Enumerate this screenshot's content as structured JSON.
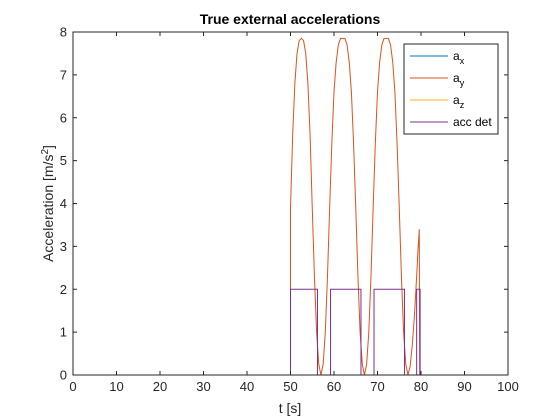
{
  "chart_data": {
    "type": "line",
    "title": "True external accelerations",
    "xlabel": "t [s]",
    "ylabel": "Acceleration [m/s²]",
    "ylabel_base": "Acceleration [m/s",
    "ylabel_sup": "2",
    "ylabel_end": "]",
    "xlim": [
      0,
      100
    ],
    "ylim": [
      0,
      8
    ],
    "xticks": [
      0,
      10,
      20,
      30,
      40,
      50,
      60,
      70,
      80,
      90,
      100
    ],
    "yticks": [
      0,
      1,
      2,
      3,
      4,
      5,
      6,
      7,
      8
    ],
    "grid": false,
    "legend_position": "top-right",
    "series": [
      {
        "name": "a_x",
        "legend_base": "a",
        "legend_sub": "x",
        "color": "#0072BD",
        "points": [
          [
            0,
            0
          ],
          [
            100,
            0
          ]
        ]
      },
      {
        "name": "a_y",
        "legend_base": "a",
        "legend_sub": "y",
        "color": "#D95319",
        "points": [
          [
            0,
            0
          ],
          [
            50,
            0
          ],
          [
            50,
            3.9
          ],
          [
            50.5,
            5.6
          ],
          [
            51,
            6.8
          ],
          [
            51.5,
            7.5
          ],
          [
            52,
            7.8
          ],
          [
            52.5,
            7.85
          ],
          [
            53,
            7.8
          ],
          [
            53.5,
            7.5
          ],
          [
            54,
            6.8
          ],
          [
            54.5,
            5.6
          ],
          [
            55,
            3.9
          ],
          [
            55.5,
            2.3
          ],
          [
            56,
            1.0
          ],
          [
            56.5,
            0.25
          ],
          [
            57,
            0
          ],
          [
            57.5,
            0.25
          ],
          [
            58,
            1.0
          ],
          [
            58.5,
            2.3
          ],
          [
            59,
            3.9
          ],
          [
            59.5,
            5.4
          ],
          [
            60,
            6.6
          ],
          [
            60.5,
            7.3
          ],
          [
            61,
            7.7
          ],
          [
            61.5,
            7.85
          ],
          [
            62.5,
            7.85
          ],
          [
            63,
            7.7
          ],
          [
            63.5,
            7.3
          ],
          [
            64,
            6.6
          ],
          [
            64.5,
            5.4
          ],
          [
            65,
            3.9
          ],
          [
            65.5,
            2.3
          ],
          [
            66,
            1.0
          ],
          [
            66.5,
            0.25
          ],
          [
            67,
            0
          ],
          [
            67.5,
            0.25
          ],
          [
            68,
            1.0
          ],
          [
            68.5,
            2.3
          ],
          [
            69,
            3.9
          ],
          [
            69.5,
            5.4
          ],
          [
            70,
            6.6
          ],
          [
            70.5,
            7.3
          ],
          [
            71,
            7.7
          ],
          [
            71.5,
            7.85
          ],
          [
            72.5,
            7.85
          ],
          [
            73,
            7.7
          ],
          [
            73.5,
            7.3
          ],
          [
            74,
            6.6
          ],
          [
            74.5,
            5.4
          ],
          [
            75,
            3.9
          ],
          [
            75.5,
            2.3
          ],
          [
            76,
            1.0
          ],
          [
            76.5,
            0.25
          ],
          [
            77,
            0
          ],
          [
            77.5,
            0.2
          ],
          [
            78,
            0.7
          ],
          [
            78.5,
            1.4
          ],
          [
            79,
            2.3
          ],
          [
            79.3,
            2.9
          ],
          [
            79.6,
            3.4
          ],
          [
            79.7,
            0
          ],
          [
            100,
            0
          ],
          [
            100,
            3.9
          ]
        ]
      },
      {
        "name": "a_z",
        "legend_base": "a",
        "legend_sub": "z",
        "color": "#EDB120",
        "points": [
          [
            0,
            0
          ],
          [
            100,
            0
          ]
        ]
      },
      {
        "name": "acc det",
        "legend_base": "acc det",
        "legend_sub": "",
        "color": "#7E2F8E",
        "points": [
          [
            0,
            0
          ],
          [
            50,
            0
          ],
          [
            50,
            2
          ],
          [
            56.2,
            2
          ],
          [
            56.2,
            0
          ],
          [
            59.2,
            0
          ],
          [
            59.2,
            2
          ],
          [
            66.2,
            2
          ],
          [
            66.2,
            0
          ],
          [
            69.2,
            0
          ],
          [
            69.2,
            2
          ],
          [
            76.2,
            2
          ],
          [
            76.2,
            0
          ],
          [
            79,
            0
          ],
          [
            79,
            2
          ],
          [
            79.8,
            2
          ],
          [
            79.8,
            0
          ],
          [
            100,
            0
          ],
          [
            100,
            2
          ]
        ]
      }
    ]
  }
}
